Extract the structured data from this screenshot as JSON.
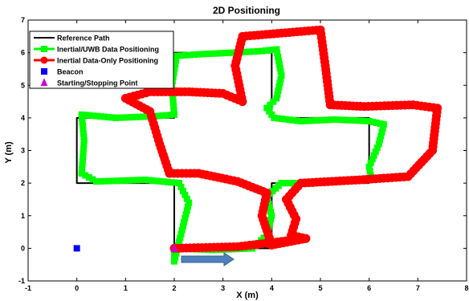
{
  "chart_data": {
    "type": "line",
    "title": "2D Positioning",
    "xlabel": "X (m)",
    "ylabel": "Y (m)",
    "xlim": [
      -1,
      8
    ],
    "ylim": [
      -1,
      7
    ],
    "x_ticks": [
      -1,
      0,
      1,
      2,
      3,
      4,
      5,
      6,
      7,
      8
    ],
    "y_ticks": [
      -1,
      0,
      1,
      2,
      3,
      4,
      5,
      6,
      7
    ],
    "grid": false,
    "legend_position": "top-left",
    "colors": {
      "reference": "#000000",
      "uwb": "#00ff00",
      "inertial": "#ff0000",
      "beacon": "#0000ff",
      "start": "#cc00cc",
      "arrow": "#4f81bd"
    },
    "series": [
      {
        "name": "Reference Path",
        "marker": "none",
        "points": [
          [
            2,
            0
          ],
          [
            2,
            2
          ],
          [
            0,
            2
          ],
          [
            0,
            4
          ],
          [
            2,
            4
          ],
          [
            2,
            6
          ],
          [
            4,
            6
          ],
          [
            4,
            4
          ],
          [
            6,
            4
          ],
          [
            6,
            2
          ],
          [
            4,
            2
          ],
          [
            4,
            0
          ],
          [
            2,
            0
          ]
        ]
      },
      {
        "name": "Inertial/UWB Data Positioning",
        "marker": "square",
        "points": [
          [
            2.0,
            0.0
          ],
          [
            2.0,
            -0.4
          ],
          [
            2.2,
            0.8
          ],
          [
            2.3,
            1.4
          ],
          [
            2.1,
            2.0
          ],
          [
            1.4,
            2.1
          ],
          [
            0.4,
            2.05
          ],
          [
            0.1,
            2.3
          ],
          [
            0.15,
            3.3
          ],
          [
            0.1,
            4.1
          ],
          [
            0.8,
            4.0
          ],
          [
            1.6,
            4.05
          ],
          [
            2.0,
            4.1
          ],
          [
            1.95,
            5.0
          ],
          [
            2.05,
            5.9
          ],
          [
            2.5,
            5.95
          ],
          [
            3.2,
            6.0
          ],
          [
            3.8,
            6.05
          ],
          [
            4.1,
            6.1
          ],
          [
            4.2,
            5.3
          ],
          [
            4.1,
            4.6
          ],
          [
            3.9,
            4.3
          ],
          [
            4.05,
            4.0
          ],
          [
            4.6,
            3.9
          ],
          [
            5.3,
            3.95
          ],
          [
            6.0,
            3.9
          ],
          [
            6.3,
            3.8
          ],
          [
            6.2,
            3.2
          ],
          [
            6.0,
            2.5
          ],
          [
            6.05,
            2.1
          ],
          [
            5.4,
            2.05
          ],
          [
            4.7,
            2.0
          ],
          [
            4.2,
            2.0
          ],
          [
            3.9,
            1.6
          ],
          [
            4.0,
            1.0
          ],
          [
            3.9,
            0.4
          ],
          [
            3.6,
            0.0
          ],
          [
            2.8,
            -0.05
          ],
          [
            2.0,
            0.0
          ]
        ]
      },
      {
        "name": "Inertial Data-Only Positioning",
        "marker": "circle",
        "points": [
          [
            2.0,
            0.0
          ],
          [
            3.3,
            0.05
          ],
          [
            4.7,
            0.3
          ],
          [
            4.0,
            0.1
          ],
          [
            3.8,
            1.0
          ],
          [
            3.9,
            1.7
          ],
          [
            3.3,
            2.05
          ],
          [
            2.5,
            2.3
          ],
          [
            1.9,
            2.3
          ],
          [
            1.7,
            3.2
          ],
          [
            1.5,
            4.2
          ],
          [
            1.0,
            4.6
          ],
          [
            1.5,
            4.8
          ],
          [
            2.3,
            4.8
          ],
          [
            3.0,
            4.75
          ],
          [
            3.4,
            4.5
          ],
          [
            3.25,
            5.6
          ],
          [
            3.4,
            6.5
          ],
          [
            4.2,
            6.6
          ],
          [
            5.0,
            6.7
          ],
          [
            5.1,
            5.6
          ],
          [
            5.2,
            4.4
          ],
          [
            5.9,
            4.35
          ],
          [
            6.9,
            4.4
          ],
          [
            7.4,
            4.3
          ],
          [
            7.3,
            3.0
          ],
          [
            6.8,
            2.2
          ],
          [
            5.8,
            2.1
          ],
          [
            4.6,
            2.0
          ],
          [
            4.3,
            1.5
          ],
          [
            4.5,
            0.9
          ],
          [
            4.4,
            0.4
          ],
          [
            4.7,
            0.3
          ]
        ]
      },
      {
        "name": "Beacon",
        "marker": "square",
        "points": [
          [
            0,
            0
          ]
        ]
      },
      {
        "name": "Starting/Stopping Point",
        "marker": "triangle",
        "points": [
          [
            2,
            0
          ]
        ]
      }
    ]
  }
}
